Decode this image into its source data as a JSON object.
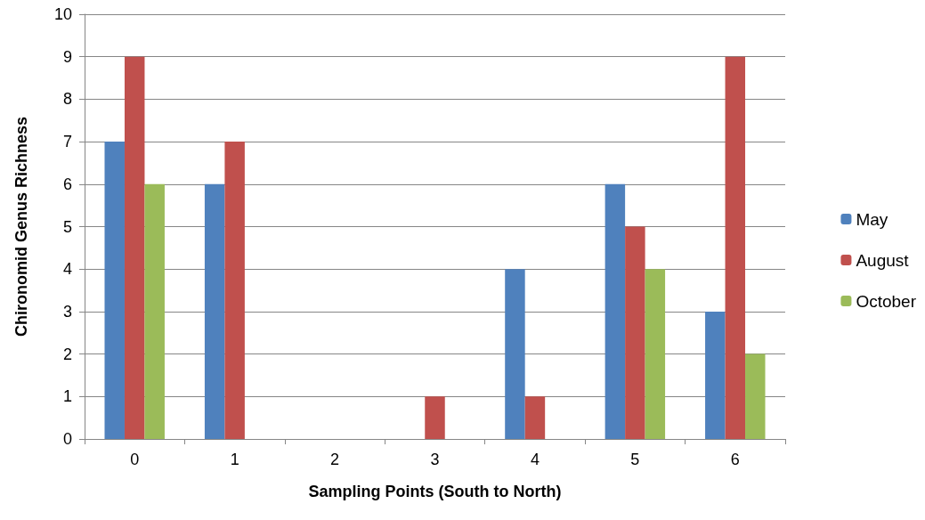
{
  "chart_data": {
    "type": "bar",
    "xlabel": "Sampling Points (South to North)",
    "ylabel": "Chironomid Genus Richness",
    "categories": [
      "0",
      "1",
      "2",
      "3",
      "4",
      "5",
      "6"
    ],
    "series": [
      {
        "name": "May",
        "color": "#4f81bd",
        "values": [
          7,
          6,
          0,
          0,
          4,
          6,
          3
        ]
      },
      {
        "name": "August",
        "color": "#c0504d",
        "values": [
          9,
          7,
          0,
          1,
          1,
          5,
          9
        ]
      },
      {
        "name": "October",
        "color": "#9bbb59",
        "values": [
          6,
          0,
          0,
          0,
          0,
          4,
          2
        ]
      }
    ],
    "ylim": [
      0,
      10
    ],
    "yticks": [
      0,
      1,
      2,
      3,
      4,
      5,
      6,
      7,
      8,
      9,
      10
    ],
    "grid": "y",
    "legend": "right"
  }
}
